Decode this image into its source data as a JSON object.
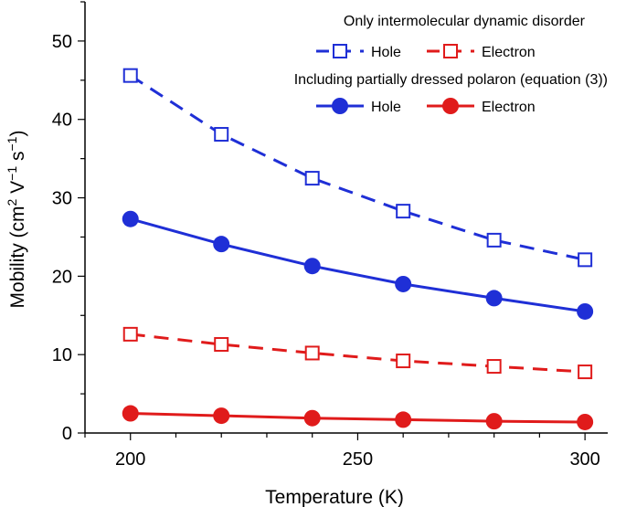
{
  "chart_data": {
    "type": "line",
    "xlabel": "Temperature (K)",
    "ylabel": {
      "base": "Mobility (cm",
      "sup1": "2",
      "mid1": " V",
      "sup2": "−1",
      "mid2": " s",
      "sup3": "−1",
      "end": ")"
    },
    "xlim": [
      190,
      305
    ],
    "ylim": [
      0,
      55
    ],
    "xticks": [
      200,
      250,
      300
    ],
    "yticks": [
      0,
      10,
      20,
      30,
      40,
      50
    ],
    "x_minor_step": 10,
    "y_minor_step": 5,
    "legend": {
      "placement": "top-right",
      "group1_title": "Only intermolecular dynamic disorder",
      "group2_title": "Including partially dressed polaron (equation (3))"
    },
    "x": [
      200,
      220,
      240,
      260,
      280,
      300
    ],
    "series": [
      {
        "name": "Hole",
        "group": 1,
        "color": "#1f2fd6",
        "marker": "open-square",
        "linestyle": "dashed",
        "values": [
          45.6,
          38.1,
          32.5,
          28.3,
          24.6,
          22.1
        ]
      },
      {
        "name": "Electron",
        "group": 1,
        "color": "#e01b1b",
        "marker": "open-square",
        "linestyle": "dashed",
        "values": [
          12.6,
          11.3,
          10.2,
          9.2,
          8.5,
          7.8
        ]
      },
      {
        "name": "Hole",
        "group": 2,
        "color": "#1f2fd6",
        "marker": "filled-circle",
        "linestyle": "solid",
        "values": [
          27.3,
          24.1,
          21.3,
          19.0,
          17.2,
          15.5
        ]
      },
      {
        "name": "Electron",
        "group": 2,
        "color": "#e01b1b",
        "marker": "filled-circle",
        "linestyle": "solid",
        "values": [
          2.5,
          2.2,
          1.9,
          1.7,
          1.5,
          1.4
        ]
      }
    ]
  }
}
